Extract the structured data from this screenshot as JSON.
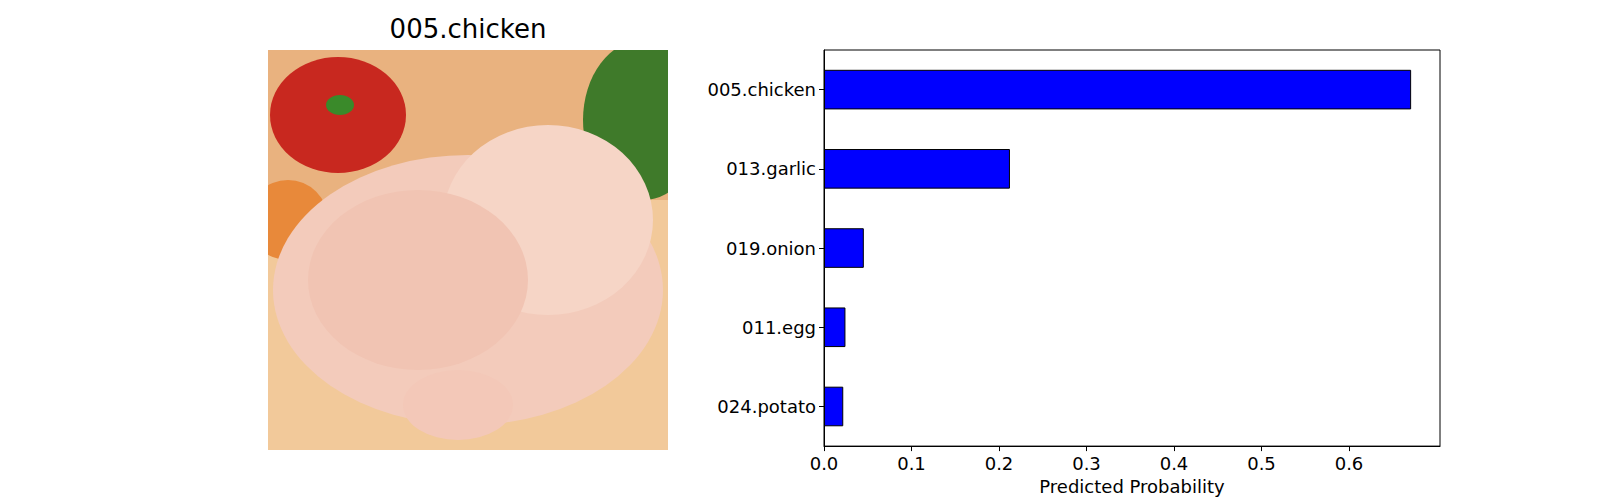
{
  "image": {
    "title": "005.chicken"
  },
  "chart_data": {
    "type": "bar",
    "orientation": "horizontal",
    "categories": [
      "005.chicken",
      "013.garlic",
      "019.onion",
      "011.egg",
      "024.potato"
    ],
    "values": [
      0.671,
      0.2125,
      0.0455,
      0.0245,
      0.022
    ],
    "color": "#0000ff",
    "xlabel": "Predicted Probability",
    "xlim": [
      0,
      0.704
    ],
    "xticks": [
      {
        "value": 0,
        "label": "0.0"
      },
      0.1,
      0.2,
      0.3,
      0.4,
      0.5,
      0.6
    ],
    "grid": false
  }
}
